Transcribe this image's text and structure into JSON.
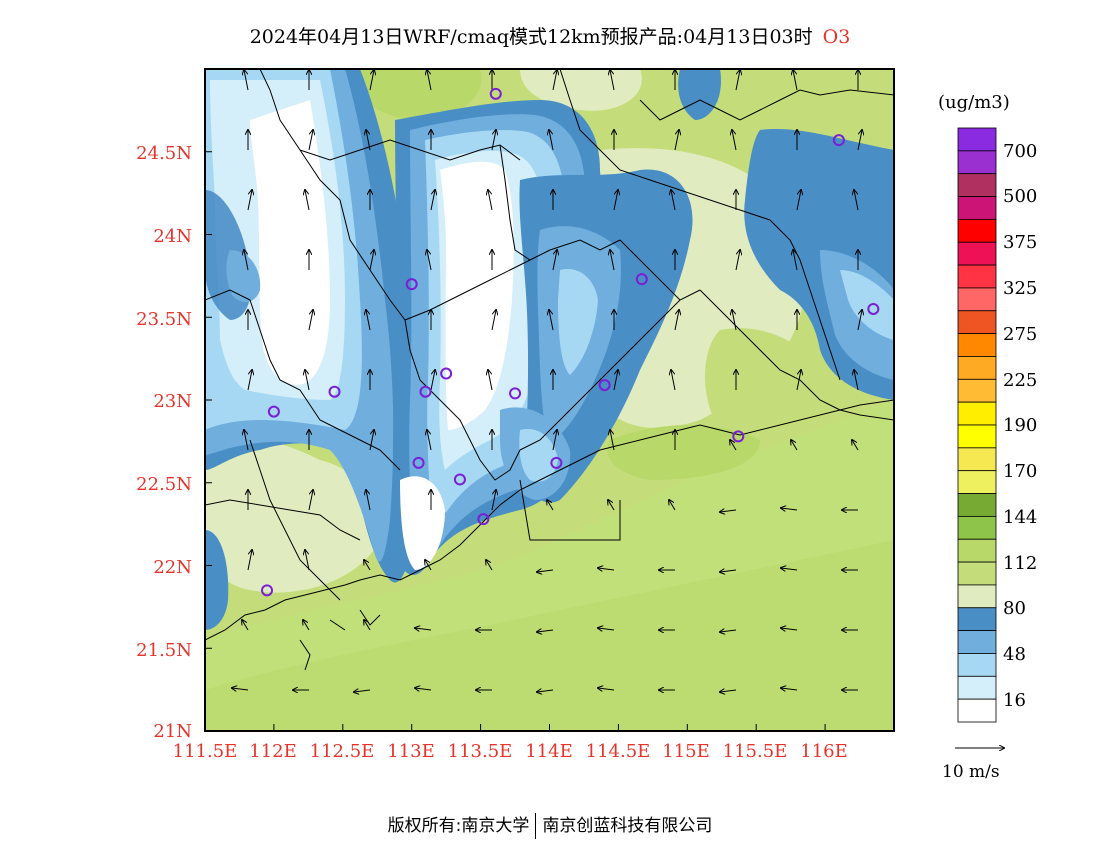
{
  "title": {
    "main": "2024年04月13日WRF/cmaq模式12km预报产品:04月13日03时",
    "species": "O3"
  },
  "axes": {
    "lat_labels": [
      "24.5N",
      "24N",
      "23.5N",
      "23N",
      "22.5N",
      "22N",
      "21.5N",
      "21N"
    ],
    "lon_labels": [
      "111.5E",
      "112E",
      "112.5E",
      "113E",
      "113.5E",
      "114E",
      "114.5E",
      "115E",
      "115.5E",
      "116E"
    ],
    "lon_range": [
      111.5,
      116.5
    ],
    "lat_range": [
      21.0,
      25.0
    ]
  },
  "legend": {
    "unit": "(ug/m3)",
    "labels": [
      "700",
      "500",
      "375",
      "325",
      "275",
      "225",
      "190",
      "170",
      "144",
      "112",
      "80",
      "48",
      "16"
    ],
    "colors": [
      "#8a2be2",
      "#9b30d0",
      "#b03060",
      "#cc1477",
      "#ff0000",
      "#ee1155",
      "#ff3344",
      "#ff6666",
      "#ee5522",
      "#ff8800",
      "#ffaa22",
      "#ffbb33",
      "#ffee00",
      "#ffff00",
      "#f5e850",
      "#eef060",
      "#77aa33",
      "#8ec44a",
      "#b8d86a",
      "#c4dd7a",
      "#e0ecc0",
      "#4a8ec6",
      "#6faedd",
      "#a6d8f4",
      "#d4eefa",
      "#ffffff"
    ]
  },
  "vector_key": {
    "label": "10 m/s"
  },
  "footer": {
    "left": "版权所有:南京大学",
    "right": "南京创蓝科技有限公司"
  },
  "map": {
    "field_colors": {
      "white": "#ffffff",
      "c16": "#d4eefa",
      "c32": "#a6d8f4",
      "c48": "#6faedd",
      "c64": "#4a8ec6",
      "c80": "#e0ecc0",
      "c96": "#c4dd7a",
      "c112": "#b8d86a",
      "sea": "#c2e07a"
    },
    "stations": [
      {
        "lon": 113.61,
        "lat": 24.85
      },
      {
        "lon": 116.1,
        "lat": 24.57
      },
      {
        "lon": 113.0,
        "lat": 23.7
      },
      {
        "lon": 114.67,
        "lat": 23.73
      },
      {
        "lon": 116.35,
        "lat": 23.55
      },
      {
        "lon": 113.25,
        "lat": 23.16
      },
      {
        "lon": 112.44,
        "lat": 23.05
      },
      {
        "lon": 113.1,
        "lat": 23.05
      },
      {
        "lon": 113.75,
        "lat": 23.04
      },
      {
        "lon": 114.4,
        "lat": 23.09
      },
      {
        "lon": 112.0,
        "lat": 22.93
      },
      {
        "lon": 115.37,
        "lat": 22.78
      },
      {
        "lon": 113.05,
        "lat": 22.62
      },
      {
        "lon": 114.05,
        "lat": 22.62
      },
      {
        "lon": 113.35,
        "lat": 22.52
      },
      {
        "lon": 113.52,
        "lat": 22.28
      },
      {
        "lon": 111.95,
        "lat": 21.85
      }
    ]
  }
}
